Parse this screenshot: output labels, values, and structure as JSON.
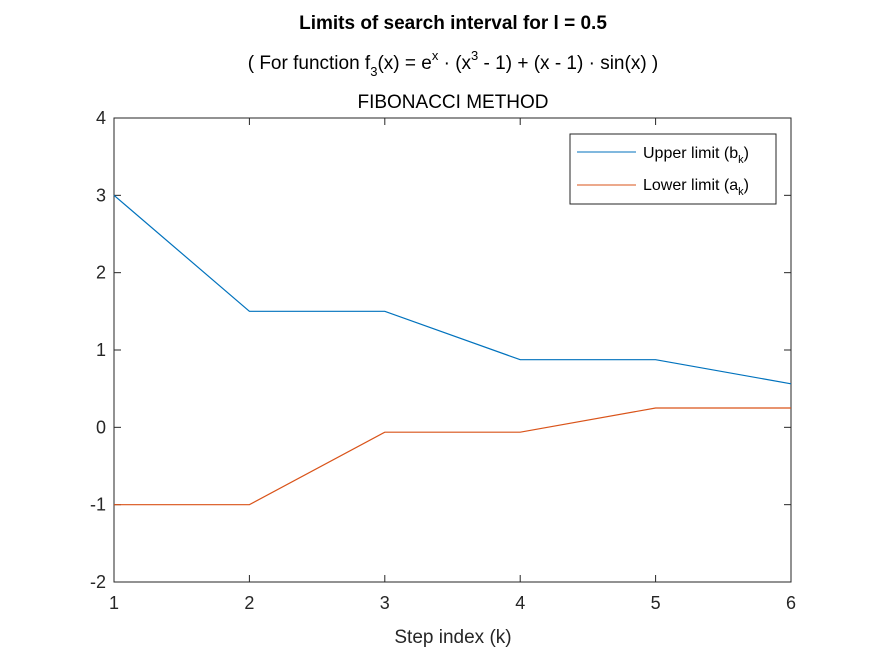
{
  "chart_data": {
    "type": "line",
    "title": "Limits of search interval for l = 0.5",
    "subtitle": {
      "prefix": "( For function f",
      "sub1": "3",
      "mid1": "(x) = e",
      "sup1": "x",
      "mid2": " · (x",
      "sup2": "3",
      "suffix": " - 1) + (x - 1) · sin(x) )"
    },
    "subtitle2": "FIBONACCI METHOD",
    "xlabel": "Step index (k)",
    "ylabel": "",
    "xlim": [
      1,
      6
    ],
    "ylim": [
      -2,
      4
    ],
    "xticks": [
      1,
      2,
      3,
      4,
      5,
      6
    ],
    "yticks": [
      -2,
      -1,
      0,
      1,
      2,
      3,
      4
    ],
    "x": [
      1,
      2,
      3,
      4,
      5,
      6
    ],
    "series": [
      {
        "name": "Upper limit (b",
        "name_sub": "k",
        "name_end": ")",
        "color": "#0072BD",
        "values": [
          3.0,
          1.5,
          1.5,
          0.875,
          0.875,
          0.5625
        ]
      },
      {
        "name": "Lower limit (a",
        "name_sub": "k",
        "name_end": ")",
        "color": "#D95319",
        "values": [
          -1.0,
          -1.0,
          -0.0625,
          -0.0625,
          0.25,
          0.25
        ]
      }
    ],
    "legend_position": "top-right",
    "grid": false
  }
}
